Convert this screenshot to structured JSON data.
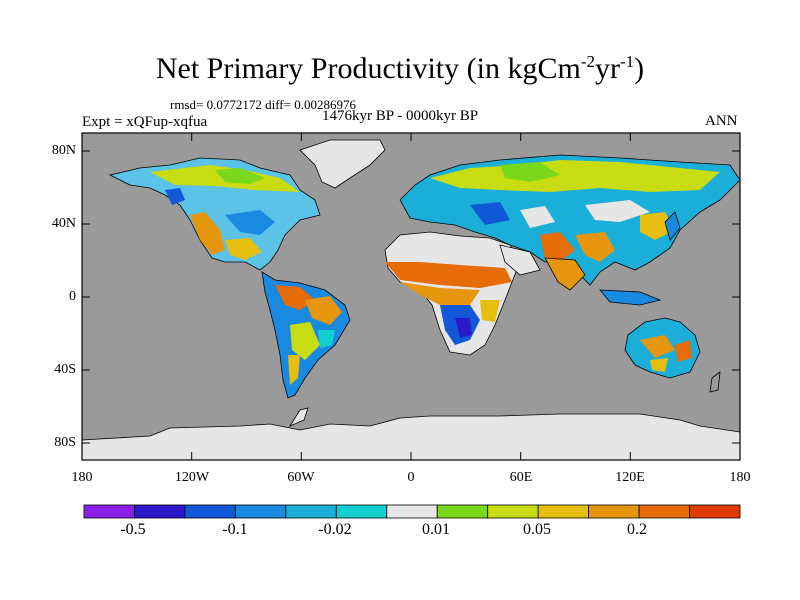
{
  "title": {
    "main": "Net Primary Productivity (in kgCm",
    "sup1": "-2",
    "mid": "yr",
    "sup2": "-1",
    "end": ")"
  },
  "stats": {
    "rmsd_diff": "rmsd= 0.0772172 diff= 0.00286976"
  },
  "subtitle": {
    "left": "Expt = xQFup-xqfua",
    "center": "1476kyr BP - 0000kyr BP",
    "right": "ANN"
  },
  "axes": {
    "y_labels": [
      "80N",
      "40N",
      "0",
      "40S",
      "80S"
    ],
    "x_labels": [
      "180",
      "120W",
      "60W",
      "0",
      "60E",
      "120E",
      "180"
    ]
  },
  "colorbar": {
    "colors": [
      "#8b1fe8",
      "#2b18c8",
      "#1058d8",
      "#1a8ae0",
      "#1aaed8",
      "#12d0d0",
      "#e6e6e6",
      "#7ad81a",
      "#c8dc12",
      "#e6be10",
      "#e6960c",
      "#e66c08",
      "#e03a04"
    ],
    "labels": [
      "-0.5",
      "-0.1",
      "-0.02",
      "0.01",
      "0.05",
      "0.2"
    ]
  },
  "map_colors": {
    "ocean": "#9a9a9a",
    "ice": "#e6e6e6"
  }
}
